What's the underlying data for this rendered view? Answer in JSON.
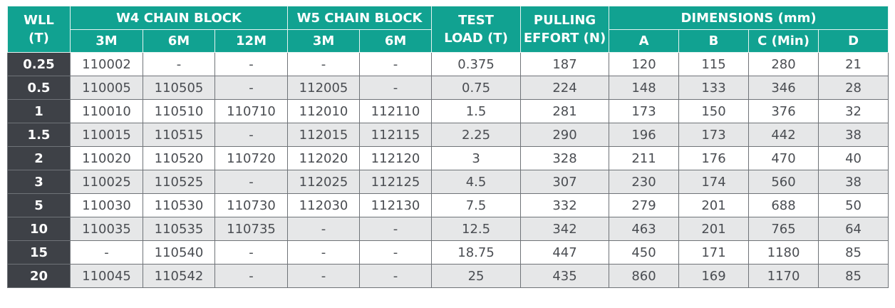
{
  "header": {
    "wll": "WLL\n(T)",
    "w4": "W4 CHAIN BLOCK",
    "w5": "W5 CHAIN BLOCK",
    "test": "TEST\nLOAD (T)",
    "pulling": "PULLING\nEFFORT (N)",
    "dimensions": "DIMENSIONS (mm)",
    "w4_3m": "3M",
    "w4_6m": "6M",
    "w4_12m": "12M",
    "w5_3m": "3M",
    "w5_6m": "6M",
    "dim_a": "A",
    "dim_b": "B",
    "dim_c": "C (Min)",
    "dim_d": "D"
  },
  "rows": [
    [
      "0.25",
      "110002",
      "-",
      "-",
      "-",
      "-",
      "0.375",
      "187",
      "120",
      "115",
      "280",
      "21"
    ],
    [
      "0.5",
      "110005",
      "110505",
      "-",
      "112005",
      "-",
      "0.75",
      "224",
      "148",
      "133",
      "346",
      "28"
    ],
    [
      "1",
      "110010",
      "110510",
      "110710",
      "112010",
      "112110",
      "1.5",
      "281",
      "173",
      "150",
      "376",
      "32"
    ],
    [
      "1.5",
      "110015",
      "110515",
      "-",
      "112015",
      "112115",
      "2.25",
      "290",
      "196",
      "173",
      "442",
      "38"
    ],
    [
      "2",
      "110020",
      "110520",
      "110720",
      "112020",
      "112120",
      "3",
      "328",
      "211",
      "176",
      "470",
      "40"
    ],
    [
      "3",
      "110025",
      "110525",
      "-",
      "112025",
      "112125",
      "4.5",
      "307",
      "230",
      "174",
      "560",
      "38"
    ],
    [
      "5",
      "110030",
      "110530",
      "110730",
      "112030",
      "112130",
      "7.5",
      "332",
      "279",
      "201",
      "688",
      "50"
    ],
    [
      "10",
      "110035",
      "110535",
      "110735",
      "-",
      "-",
      "12.5",
      "342",
      "463",
      "201",
      "765",
      "64"
    ],
    [
      "15",
      "-",
      "110540",
      "-",
      "-",
      "-",
      "18.75",
      "447",
      "450",
      "171",
      "1180",
      "85"
    ],
    [
      "20",
      "110045",
      "110542",
      "-",
      "-",
      "-",
      "25",
      "435",
      "860",
      "169",
      "1170",
      "85"
    ]
  ],
  "colors": {
    "header_bg": "#11a291",
    "wll_col_bg": "#3e4147",
    "stripe_bg": "#e6e7e8",
    "text": "#4a4d52"
  }
}
